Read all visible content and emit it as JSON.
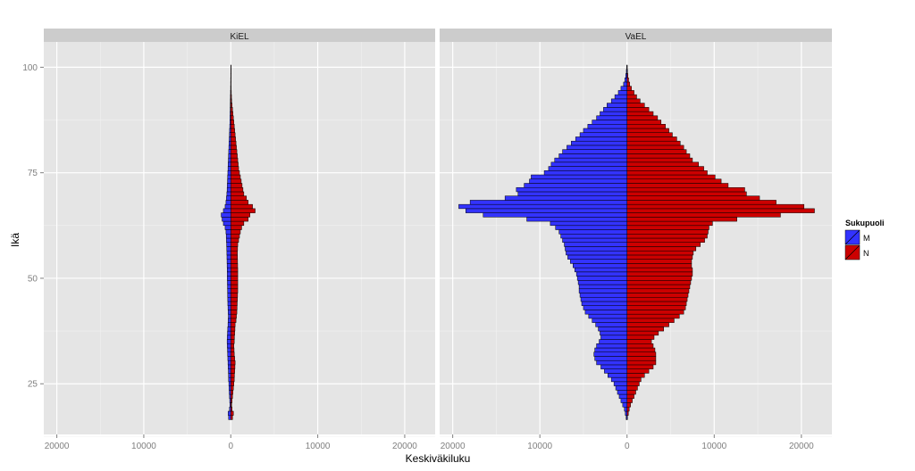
{
  "chart_data": {
    "type": "bar",
    "orientation": "horizontal-population-pyramid",
    "xlabel": "Keskiväkiluku",
    "ylabel": "Ikä",
    "xlim": [
      -21500,
      23500
    ],
    "ylim": [
      13,
      106
    ],
    "x_tick_values": [
      -20000,
      -10000,
      0,
      10000,
      20000
    ],
    "x_tick_labels": [
      "20000",
      "10000",
      "0",
      "10000",
      "20000"
    ],
    "y_ticks": [
      25,
      50,
      75,
      100
    ],
    "grid": true,
    "legend": {
      "title": "Sukupuoli",
      "placement": "right",
      "entries": [
        {
          "label": "M",
          "color": "#3333ff"
        },
        {
          "label": "N",
          "color": "#cc0000"
        }
      ]
    },
    "ages_from": 17,
    "ages_to": 100,
    "facets": [
      {
        "label": "KiEL",
        "series": [
          {
            "name": "M",
            "values": [
              -250,
              -300,
              -150,
              -100,
              -120,
              -150,
              -180,
              -200,
              -220,
              -250,
              -260,
              -280,
              -300,
              -320,
              -340,
              -360,
              -380,
              -400,
              -420,
              -400,
              -380,
              -350,
              -320,
              -300,
              -280,
              -300,
              -320,
              -340,
              -350,
              -360,
              -370,
              -380,
              -390,
              -400,
              -400,
              -410,
              -420,
              -430,
              -440,
              -450,
              -460,
              -480,
              -500,
              -520,
              -550,
              -650,
              -850,
              -1000,
              -1100,
              -850,
              -650,
              -550,
              -500,
              -450,
              -420,
              -400,
              -380,
              -360,
              -340,
              -320,
              -300,
              -280,
              -260,
              -240,
              -220,
              -200,
              -180,
              -160,
              -140,
              -120,
              -100,
              -90,
              -80,
              -70,
              -60,
              -50,
              -40,
              -30,
              -20,
              -15,
              -10,
              -5,
              -3,
              -2
            ]
          },
          {
            "name": "N",
            "values": [
              200,
              300,
              150,
              100,
              150,
              200,
              250,
              300,
              350,
              400,
              420,
              450,
              480,
              500,
              450,
              400,
              380,
              350,
              400,
              420,
              450,
              480,
              500,
              600,
              650,
              700,
              720,
              740,
              760,
              780,
              800,
              800,
              800,
              800,
              800,
              800,
              790,
              780,
              770,
              760,
              780,
              800,
              900,
              1000,
              1100,
              1250,
              1500,
              2000,
              2200,
              2800,
              2500,
              2000,
              1800,
              1500,
              1400,
              1300,
              1200,
              1100,
              1000,
              900,
              850,
              800,
              750,
              700,
              650,
              600,
              550,
              500,
              450,
              400,
              350,
              300,
              250,
              200,
              150,
              100,
              80,
              60,
              40,
              30,
              20,
              10,
              5,
              3
            ]
          }
        ]
      },
      {
        "label": "VaEL",
        "series": [
          {
            "name": "M",
            "values": [
              -100,
              -200,
              -300,
              -500,
              -700,
              -900,
              -1100,
              -1300,
              -1500,
              -1800,
              -2200,
              -2600,
              -3000,
              -3500,
              -3700,
              -3800,
              -3700,
              -3500,
              -3200,
              -3000,
              -3100,
              -3300,
              -3600,
              -4000,
              -4400,
              -4800,
              -5000,
              -5200,
              -5300,
              -5400,
              -5500,
              -5500,
              -5600,
              -5700,
              -5800,
              -6000,
              -6200,
              -6500,
              -6800,
              -7000,
              -7100,
              -7200,
              -7400,
              -7600,
              -7800,
              -8200,
              -8800,
              -11500,
              -16500,
              -18500,
              -19300,
              -18000,
              -14000,
              -12500,
              -12700,
              -11800,
              -11200,
              -11000,
              -9500,
              -9000,
              -8700,
              -8300,
              -7800,
              -7400,
              -6900,
              -6400,
              -5900,
              -5400,
              -5000,
              -4500,
              -4000,
              -3500,
              -3100,
              -2700,
              -2300,
              -1800,
              -1400,
              -1000,
              -700,
              -400,
              -250,
              -150,
              -80,
              -40
            ]
          },
          {
            "name": "N",
            "values": [
              50,
              150,
              250,
              400,
              600,
              800,
              1000,
              1200,
              1400,
              1600,
              2000,
              2500,
              3000,
              3300,
              3300,
              3300,
              3200,
              3000,
              2800,
              3100,
              3600,
              4200,
              4800,
              5400,
              6000,
              6500,
              6700,
              6800,
              6900,
              7000,
              7100,
              7200,
              7300,
              7400,
              7500,
              7500,
              7400,
              7400,
              7500,
              7600,
              7900,
              8400,
              8900,
              9200,
              9300,
              9400,
              9800,
              12600,
              17600,
              21500,
              20300,
              17100,
              15200,
              13700,
              13500,
              11600,
              10800,
              10100,
              9200,
              8800,
              8200,
              7500,
              7200,
              6800,
              6500,
              6100,
              5700,
              5200,
              4800,
              4400,
              3900,
              3500,
              3000,
              2500,
              2000,
              1500,
              1100,
              800,
              500,
              300,
              180,
              100,
              50,
              20
            ]
          }
        ]
      }
    ]
  }
}
